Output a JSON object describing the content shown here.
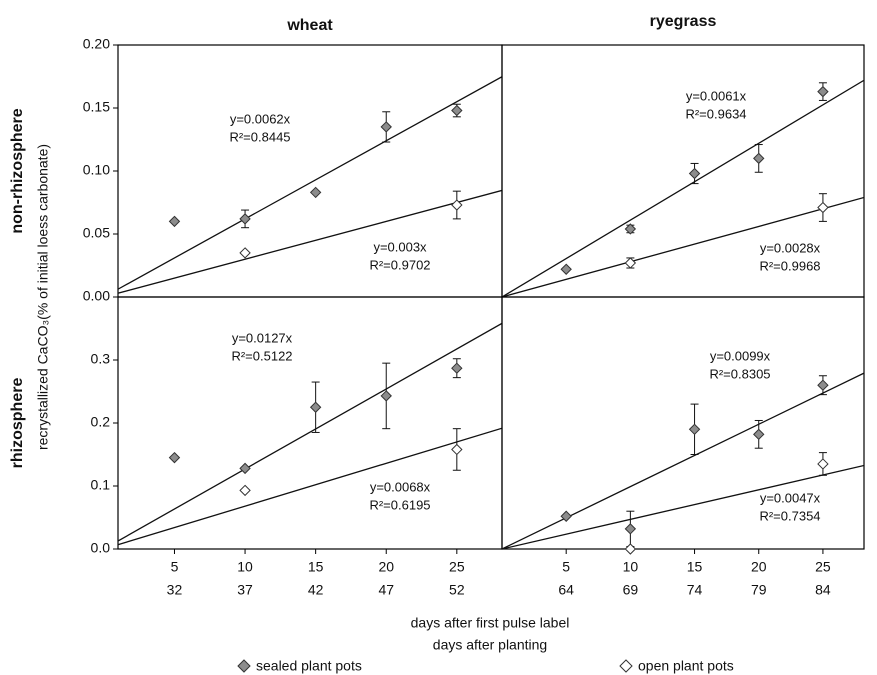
{
  "column_titles": [
    "wheat",
    "ryegrass"
  ],
  "row_titles": [
    "non-rhizosphere",
    "rhizosphere"
  ],
  "y_label": "recrystallized CaCO₃(% of initial loess carbonate)",
  "x_label": "days after first pulse label",
  "x_label2": "days after planting",
  "chart_data": [
    {
      "type": "scatter",
      "xlim": [
        1,
        28.2
      ],
      "ylim": [
        0,
        0.2
      ],
      "yticks": [
        {
          "value": 0,
          "label": "0.00"
        },
        {
          "value": 0.05,
          "label": "0.05"
        },
        {
          "value": 0.1,
          "label": "0.10"
        },
        {
          "value": 0.15,
          "label": "0.15"
        },
        {
          "value": 0.2,
          "label": "0.20"
        }
      ],
      "series": [
        {
          "name": "sealed plant pots",
          "color": "#8c8c8c",
          "x": [
            5,
            10,
            15,
            20,
            25
          ],
          "values": [
            0.06,
            0.062,
            0.083,
            0.135,
            0.148
          ],
          "errors": [
            null,
            0.007,
            null,
            0.012,
            0.005
          ]
        },
        {
          "name": "open plant pots",
          "color": "#ffffff",
          "x": [
            10,
            25
          ],
          "values": [
            0.035,
            0.073
          ],
          "errors": [
            null,
            0.011
          ]
        }
      ],
      "fits": [
        {
          "label": "y=0.0062x",
          "r2": "R²=0.8445",
          "slope": 0.0062
        },
        {
          "label": "y=0.003x",
          "r2": "R²=0.9702",
          "slope": 0.003
        }
      ]
    },
    {
      "type": "scatter",
      "xlim": [
        0,
        28.2
      ],
      "ylim": [
        0,
        0.2
      ],
      "series": [
        {
          "name": "sealed plant pots",
          "color": "#8c8c8c",
          "x": [
            5,
            10,
            15,
            20,
            25
          ],
          "values": [
            0.022,
            0.054,
            0.098,
            0.11,
            0.163
          ],
          "errors": [
            null,
            0.003,
            0.008,
            0.011,
            0.007
          ]
        },
        {
          "name": "open plant pots",
          "color": "#ffffff",
          "x": [
            10,
            25
          ],
          "values": [
            0.027,
            0.071
          ],
          "errors": [
            0.004,
            0.011
          ]
        }
      ],
      "fits": [
        {
          "label": "y=0.0061x",
          "r2": "R²=0.9634",
          "slope": 0.0061
        },
        {
          "label": "y=0.0028x",
          "r2": "R²=0.9968",
          "slope": 0.0028
        }
      ]
    },
    {
      "type": "scatter",
      "xlim": [
        1,
        28.2
      ],
      "ylim": [
        0,
        0.4
      ],
      "yticks": [
        {
          "value": 0,
          "label": "0.0"
        },
        {
          "value": 0.1,
          "label": "0.1"
        },
        {
          "value": 0.2,
          "label": "0.2"
        },
        {
          "value": 0.3,
          "label": "0.3"
        }
      ],
      "xticks": [
        5,
        10,
        15,
        20,
        25
      ],
      "xticks2": [
        32,
        37,
        42,
        47,
        52
      ],
      "series": [
        {
          "name": "sealed plant pots",
          "color": "#8c8c8c",
          "x": [
            5,
            10,
            15,
            20,
            25
          ],
          "values": [
            0.145,
            0.128,
            0.225,
            0.243,
            0.287
          ],
          "errors": [
            null,
            null,
            0.04,
            0.052,
            0.015
          ]
        },
        {
          "name": "open plant pots",
          "color": "#ffffff",
          "x": [
            10,
            25
          ],
          "values": [
            0.093,
            0.158
          ],
          "errors": [
            null,
            0.033
          ]
        }
      ],
      "fits": [
        {
          "label": "y=0.0127x",
          "r2": "R²=0.5122",
          "slope": 0.0127
        },
        {
          "label": "y=0.0068x",
          "r2": "R²=0.6195",
          "slope": 0.0068
        }
      ]
    },
    {
      "type": "scatter",
      "xlim": [
        0,
        28.2
      ],
      "ylim": [
        0,
        0.4
      ],
      "xticks": [
        5,
        10,
        15,
        20,
        25
      ],
      "xticks2": [
        64,
        69,
        74,
        79,
        84
      ],
      "series": [
        {
          "name": "sealed plant pots",
          "color": "#8c8c8c",
          "x": [
            5,
            10,
            15,
            20,
            25
          ],
          "values": [
            0.052,
            0.032,
            0.19,
            0.182,
            0.26
          ],
          "errors": [
            null,
            0.028,
            0.04,
            0.022,
            0.015
          ]
        },
        {
          "name": "open plant pots",
          "color": "#ffffff",
          "x": [
            10,
            25
          ],
          "values": [
            0,
            0.135
          ],
          "errors": [
            null,
            0.018
          ]
        }
      ],
      "fits": [
        {
          "label": "y=0.0099x",
          "r2": "R²=0.8305",
          "slope": 0.0099
        },
        {
          "label": "y=0.0047x",
          "r2": "R²=0.7354",
          "slope": 0.0047
        }
      ]
    }
  ]
}
